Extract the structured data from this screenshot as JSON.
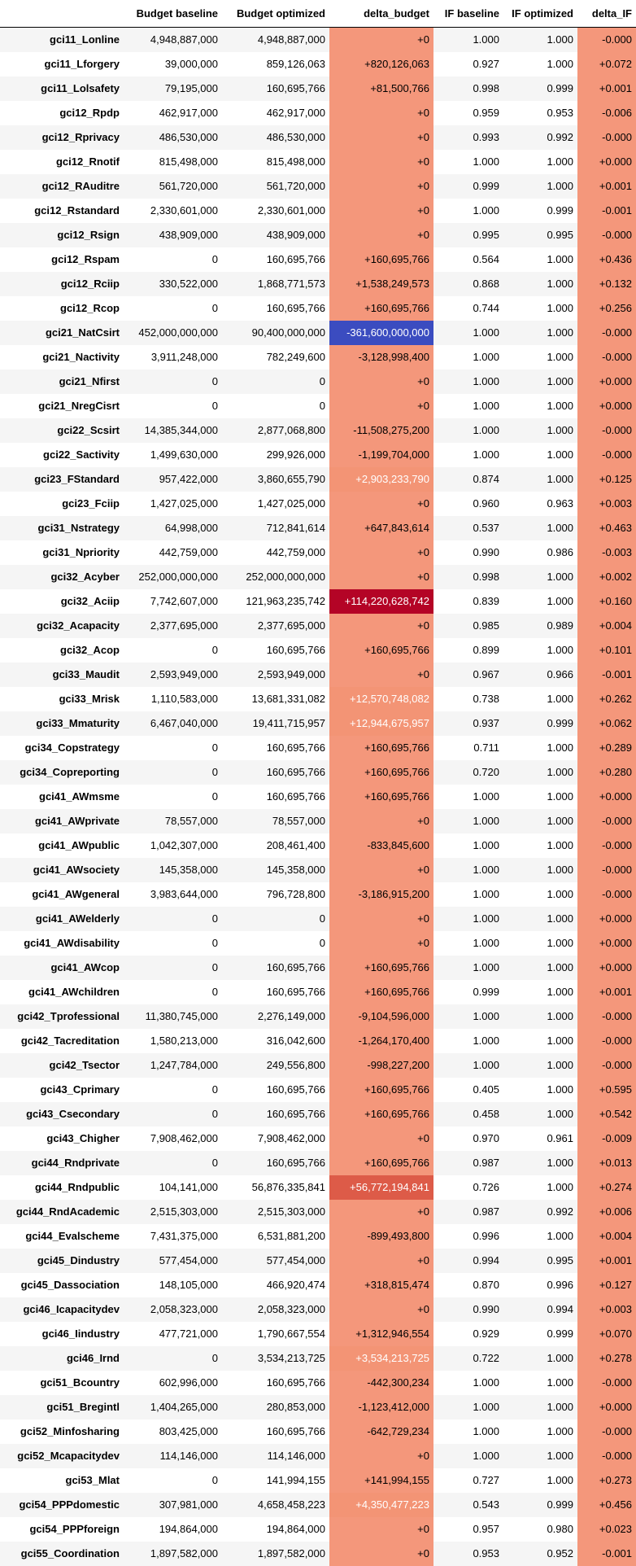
{
  "headers": [
    "",
    "Budget baseline",
    "Budget optimized",
    "delta_budget",
    "IF baseline",
    "IF optimized",
    "delta_IF"
  ],
  "colors": {
    "cell_default": "#f4977b",
    "cell_blue": "#3b4cc0",
    "cell_darkred": "#b40426",
    "cell_red": "#dd5b48",
    "cell_lightred": "#f39475",
    "text_light": "#ffffff",
    "text_dark": "#000000"
  },
  "rows": [
    [
      "gci11_Lonline",
      "4,948,887,000",
      "4,948,887,000",
      "+0",
      "1.000",
      "1.000",
      "-0.000"
    ],
    [
      "gci11_Lforgery",
      "39,000,000",
      "859,126,063",
      "+820,126,063",
      "0.927",
      "1.000",
      "+0.072"
    ],
    [
      "gci11_Lolsafety",
      "79,195,000",
      "160,695,766",
      "+81,500,766",
      "0.998",
      "0.999",
      "+0.001"
    ],
    [
      "gci12_Rpdp",
      "462,917,000",
      "462,917,000",
      "+0",
      "0.959",
      "0.953",
      "-0.006"
    ],
    [
      "gci12_Rprivacy",
      "486,530,000",
      "486,530,000",
      "+0",
      "0.993",
      "0.992",
      "-0.000"
    ],
    [
      "gci12_Rnotif",
      "815,498,000",
      "815,498,000",
      "+0",
      "1.000",
      "1.000",
      "+0.000"
    ],
    [
      "gci12_RAuditre",
      "561,720,000",
      "561,720,000",
      "+0",
      "0.999",
      "1.000",
      "+0.001"
    ],
    [
      "gci12_Rstandard",
      "2,330,601,000",
      "2,330,601,000",
      "+0",
      "1.000",
      "0.999",
      "-0.001"
    ],
    [
      "gci12_Rsign",
      "438,909,000",
      "438,909,000",
      "+0",
      "0.995",
      "0.995",
      "-0.000"
    ],
    [
      "gci12_Rspam",
      "0",
      "160,695,766",
      "+160,695,766",
      "0.564",
      "1.000",
      "+0.436"
    ],
    [
      "gci12_Rciip",
      "330,522,000",
      "1,868,771,573",
      "+1,538,249,573",
      "0.868",
      "1.000",
      "+0.132"
    ],
    [
      "gci12_Rcop",
      "0",
      "160,695,766",
      "+160,695,766",
      "0.744",
      "1.000",
      "+0.256"
    ],
    [
      "gci21_NatCsirt",
      "452,000,000,000",
      "90,400,000,000",
      "-361,600,000,000",
      "1.000",
      "1.000",
      "-0.000"
    ],
    [
      "gci21_Nactivity",
      "3,911,248,000",
      "782,249,600",
      "-3,128,998,400",
      "1.000",
      "1.000",
      "-0.000"
    ],
    [
      "gci21_Nfirst",
      "0",
      "0",
      "+0",
      "1.000",
      "1.000",
      "+0.000"
    ],
    [
      "gci21_NregCisrt",
      "0",
      "0",
      "+0",
      "1.000",
      "1.000",
      "+0.000"
    ],
    [
      "gci22_Scsirt",
      "14,385,344,000",
      "2,877,068,800",
      "-11,508,275,200",
      "1.000",
      "1.000",
      "-0.000"
    ],
    [
      "gci22_Sactivity",
      "1,499,630,000",
      "299,926,000",
      "-1,199,704,000",
      "1.000",
      "1.000",
      "-0.000"
    ],
    [
      "gci23_FStandard",
      "957,422,000",
      "3,860,655,790",
      "+2,903,233,790",
      "0.874",
      "1.000",
      "+0.125"
    ],
    [
      "gci23_Fciip",
      "1,427,025,000",
      "1,427,025,000",
      "+0",
      "0.960",
      "0.963",
      "+0.003"
    ],
    [
      "gci31_Nstrategy",
      "64,998,000",
      "712,841,614",
      "+647,843,614",
      "0.537",
      "1.000",
      "+0.463"
    ],
    [
      "gci31_Npriority",
      "442,759,000",
      "442,759,000",
      "+0",
      "0.990",
      "0.986",
      "-0.003"
    ],
    [
      "gci32_Acyber",
      "252,000,000,000",
      "252,000,000,000",
      "+0",
      "0.998",
      "1.000",
      "+0.002"
    ],
    [
      "gci32_Aciip",
      "7,742,607,000",
      "121,963,235,742",
      "+114,220,628,742",
      "0.839",
      "1.000",
      "+0.160"
    ],
    [
      "gci32_Acapacity",
      "2,377,695,000",
      "2,377,695,000",
      "+0",
      "0.985",
      "0.989",
      "+0.004"
    ],
    [
      "gci32_Acop",
      "0",
      "160,695,766",
      "+160,695,766",
      "0.899",
      "1.000",
      "+0.101"
    ],
    [
      "gci33_Maudit",
      "2,593,949,000",
      "2,593,949,000",
      "+0",
      "0.967",
      "0.966",
      "-0.001"
    ],
    [
      "gci33_Mrisk",
      "1,110,583,000",
      "13,681,331,082",
      "+12,570,748,082",
      "0.738",
      "1.000",
      "+0.262"
    ],
    [
      "gci33_Mmaturity",
      "6,467,040,000",
      "19,411,715,957",
      "+12,944,675,957",
      "0.937",
      "0.999",
      "+0.062"
    ],
    [
      "gci34_Copstrategy",
      "0",
      "160,695,766",
      "+160,695,766",
      "0.711",
      "1.000",
      "+0.289"
    ],
    [
      "gci34_Copreporting",
      "0",
      "160,695,766",
      "+160,695,766",
      "0.720",
      "1.000",
      "+0.280"
    ],
    [
      "gci41_AWmsme",
      "0",
      "160,695,766",
      "+160,695,766",
      "1.000",
      "1.000",
      "+0.000"
    ],
    [
      "gci41_AWprivate",
      "78,557,000",
      "78,557,000",
      "+0",
      "1.000",
      "1.000",
      "-0.000"
    ],
    [
      "gci41_AWpublic",
      "1,042,307,000",
      "208,461,400",
      "-833,845,600",
      "1.000",
      "1.000",
      "-0.000"
    ],
    [
      "gci41_AWsociety",
      "145,358,000",
      "145,358,000",
      "+0",
      "1.000",
      "1.000",
      "-0.000"
    ],
    [
      "gci41_AWgeneral",
      "3,983,644,000",
      "796,728,800",
      "-3,186,915,200",
      "1.000",
      "1.000",
      "-0.000"
    ],
    [
      "gci41_AWelderly",
      "0",
      "0",
      "+0",
      "1.000",
      "1.000",
      "+0.000"
    ],
    [
      "gci41_AWdisability",
      "0",
      "0",
      "+0",
      "1.000",
      "1.000",
      "+0.000"
    ],
    [
      "gci41_AWcop",
      "0",
      "160,695,766",
      "+160,695,766",
      "1.000",
      "1.000",
      "+0.000"
    ],
    [
      "gci41_AWchildren",
      "0",
      "160,695,766",
      "+160,695,766",
      "0.999",
      "1.000",
      "+0.001"
    ],
    [
      "gci42_Tprofessional",
      "11,380,745,000",
      "2,276,149,000",
      "-9,104,596,000",
      "1.000",
      "1.000",
      "-0.000"
    ],
    [
      "gci42_Tacreditation",
      "1,580,213,000",
      "316,042,600",
      "-1,264,170,400",
      "1.000",
      "1.000",
      "-0.000"
    ],
    [
      "gci42_Tsector",
      "1,247,784,000",
      "249,556,800",
      "-998,227,200",
      "1.000",
      "1.000",
      "-0.000"
    ],
    [
      "gci43_Cprimary",
      "0",
      "160,695,766",
      "+160,695,766",
      "0.405",
      "1.000",
      "+0.595"
    ],
    [
      "gci43_Csecondary",
      "0",
      "160,695,766",
      "+160,695,766",
      "0.458",
      "1.000",
      "+0.542"
    ],
    [
      "gci43_Chigher",
      "7,908,462,000",
      "7,908,462,000",
      "+0",
      "0.970",
      "0.961",
      "-0.009"
    ],
    [
      "gci44_Rndprivate",
      "0",
      "160,695,766",
      "+160,695,766",
      "0.987",
      "1.000",
      "+0.013"
    ],
    [
      "gci44_Rndpublic",
      "104,141,000",
      "56,876,335,841",
      "+56,772,194,841",
      "0.726",
      "1.000",
      "+0.274"
    ],
    [
      "gci44_RndAcademic",
      "2,515,303,000",
      "2,515,303,000",
      "+0",
      "0.987",
      "0.992",
      "+0.006"
    ],
    [
      "gci44_Evalscheme",
      "7,431,375,000",
      "6,531,881,200",
      "-899,493,800",
      "0.996",
      "1.000",
      "+0.004"
    ],
    [
      "gci45_Dindustry",
      "577,454,000",
      "577,454,000",
      "+0",
      "0.994",
      "0.995",
      "+0.001"
    ],
    [
      "gci45_Dassociation",
      "148,105,000",
      "466,920,474",
      "+318,815,474",
      "0.870",
      "0.996",
      "+0.127"
    ],
    [
      "gci46_Icapacitydev",
      "2,058,323,000",
      "2,058,323,000",
      "+0",
      "0.990",
      "0.994",
      "+0.003"
    ],
    [
      "gci46_Iindustry",
      "477,721,000",
      "1,790,667,554",
      "+1,312,946,554",
      "0.929",
      "0.999",
      "+0.070"
    ],
    [
      "gci46_Irnd",
      "0",
      "3,534,213,725",
      "+3,534,213,725",
      "0.722",
      "1.000",
      "+0.278"
    ],
    [
      "gci51_Bcountry",
      "602,996,000",
      "160,695,766",
      "-442,300,234",
      "1.000",
      "1.000",
      "-0.000"
    ],
    [
      "gci51_Bregintl",
      "1,404,265,000",
      "280,853,000",
      "-1,123,412,000",
      "1.000",
      "1.000",
      "+0.000"
    ],
    [
      "gci52_Minfosharing",
      "803,425,000",
      "160,695,766",
      "-642,729,234",
      "1.000",
      "1.000",
      "-0.000"
    ],
    [
      "gci52_Mcapacitydev",
      "114,146,000",
      "114,146,000",
      "+0",
      "1.000",
      "1.000",
      "-0.000"
    ],
    [
      "gci53_Mlat",
      "0",
      "141,994,155",
      "+141,994,155",
      "0.727",
      "1.000",
      "+0.273"
    ],
    [
      "gci54_PPPdomestic",
      "307,981,000",
      "4,658,458,223",
      "+4,350,477,223",
      "0.543",
      "0.999",
      "+0.456"
    ],
    [
      "gci54_PPPforeign",
      "194,864,000",
      "194,864,000",
      "+0",
      "0.957",
      "0.980",
      "+0.023"
    ],
    [
      "gci55_Coordination",
      "1,897,582,000",
      "1,897,582,000",
      "+0",
      "0.953",
      "0.952",
      "-0.001"
    ]
  ],
  "highlights": {
    "12": "blue",
    "23": "darkred",
    "47": "red",
    "18": "lightred",
    "27": "lightred",
    "28": "lightred",
    "54": "lightred",
    "60": "lightred"
  }
}
